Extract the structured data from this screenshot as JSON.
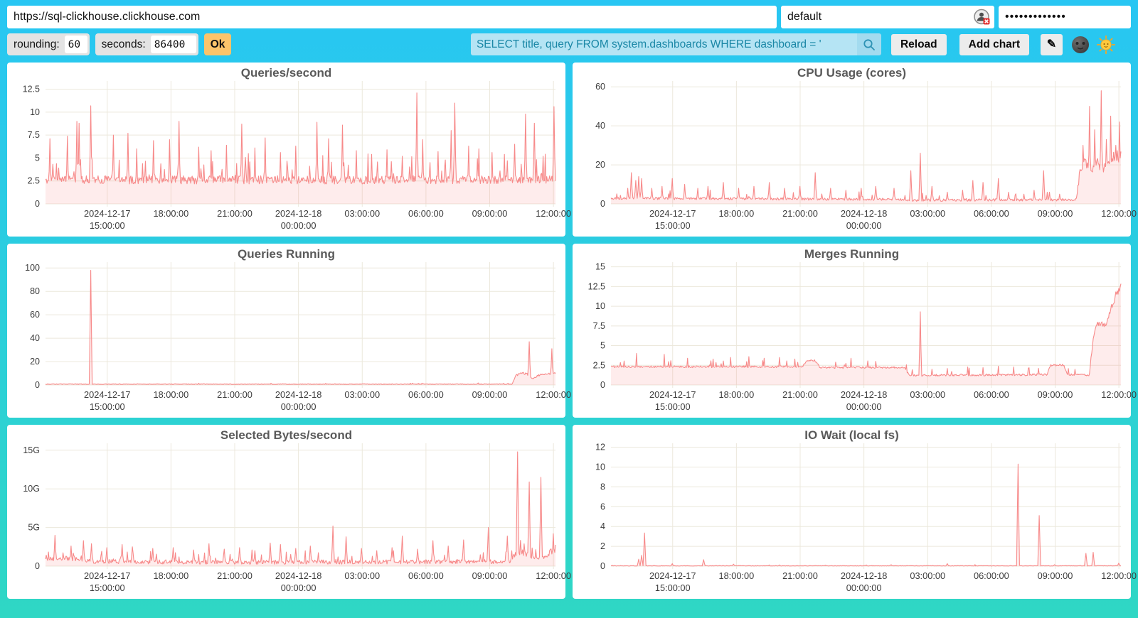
{
  "header": {
    "url": "https://sql-clickhouse.clickhouse.com",
    "username": "default",
    "password_mask": "•••••••••••••"
  },
  "toolbar": {
    "rounding_label": "rounding:",
    "rounding_value": "60",
    "seconds_label": "seconds:",
    "seconds_value": "86400",
    "ok_label": "Ok",
    "query_value": "SELECT title, query FROM system.dashboards WHERE dashboard = '",
    "reload_label": "Reload",
    "add_chart_label": "Add chart",
    "edit_glyph": "✎",
    "icons": {
      "search": "magnifier-icon",
      "edit": "pencil-icon",
      "dark_theme": "new-moon-face-icon",
      "light_theme": "sun-with-face-icon",
      "password_manager": "user-circle-error-icon"
    }
  },
  "colors": {
    "line": "#F78A8A",
    "fill": "rgba(248,136,136,0.16)",
    "grid": "#ECE8DC",
    "tick_text": "#3c3c3c",
    "ok_accent": "#FCC46A",
    "query_bg": "#B5E4F4",
    "query_text": "#1A87A6",
    "background_top": "#28C6F3",
    "background_bottom": "#2FD7C4"
  },
  "axis": {
    "x_ticks": [
      {
        "f": 0.121,
        "line1": "2024-12-17",
        "line2": "15:00:00"
      },
      {
        "f": 0.246,
        "line1": "18:00:00"
      },
      {
        "f": 0.371,
        "line1": "21:00:00"
      },
      {
        "f": 0.496,
        "line1": "2024-12-18",
        "line2": "00:00:00"
      },
      {
        "f": 0.621,
        "line1": "03:00:00"
      },
      {
        "f": 0.746,
        "line1": "06:00:00"
      },
      {
        "f": 0.871,
        "line1": "09:00:00"
      },
      {
        "f": 0.996,
        "line1": "12:00:00"
      }
    ]
  },
  "chart_data": [
    {
      "type": "line",
      "title": "Queries/second",
      "ymax": 13.4,
      "y_ticks": [
        {
          "v": 0,
          "label": "0"
        },
        {
          "v": 2.5,
          "label": "2.5"
        },
        {
          "v": 5,
          "label": "5"
        },
        {
          "v": 7.5,
          "label": "7.5"
        },
        {
          "v": 10,
          "label": "10"
        },
        {
          "v": 12.5,
          "label": "12.5"
        }
      ],
      "baseline": [
        [
          0,
          2.55
        ],
        [
          1,
          2.55
        ]
      ],
      "spikes": [
        [
          0.008,
          7.1
        ],
        [
          0.043,
          7.4
        ],
        [
          0.061,
          9.0
        ],
        [
          0.066,
          8.8
        ],
        [
          0.089,
          10.7
        ],
        [
          0.133,
          7.5
        ],
        [
          0.161,
          7.7
        ],
        [
          0.179,
          6.0
        ],
        [
          0.212,
          6.9
        ],
        [
          0.243,
          7.0
        ],
        [
          0.262,
          9.0
        ],
        [
          0.3,
          6.2
        ],
        [
          0.325,
          5.8
        ],
        [
          0.355,
          6.4
        ],
        [
          0.385,
          8.7
        ],
        [
          0.41,
          6.1
        ],
        [
          0.43,
          7.2
        ],
        [
          0.46,
          5.6
        ],
        [
          0.49,
          6.3
        ],
        [
          0.532,
          8.9
        ],
        [
          0.555,
          7.1
        ],
        [
          0.582,
          8.6
        ],
        [
          0.61,
          5.8
        ],
        [
          0.64,
          5.4
        ],
        [
          0.67,
          5.9
        ],
        [
          0.7,
          5.2
        ],
        [
          0.728,
          12.1
        ],
        [
          0.74,
          7.0
        ],
        [
          0.77,
          5.7
        ],
        [
          0.795,
          8.0
        ],
        [
          0.803,
          11.0
        ],
        [
          0.83,
          6.3
        ],
        [
          0.85,
          6.0
        ],
        [
          0.875,
          5.6
        ],
        [
          0.9,
          5.4
        ],
        [
          0.92,
          6.5
        ],
        [
          0.942,
          9.8
        ],
        [
          0.958,
          8.8
        ],
        [
          0.975,
          5.2
        ],
        [
          0.997,
          10.6
        ]
      ],
      "noise": {
        "min": 0.45,
        "rel": 0.1,
        "spike_prob": 0.1,
        "spike_amp": 2.6,
        "seed": 11
      }
    },
    {
      "type": "line",
      "title": "CPU Usage (cores)",
      "ymax": 63,
      "y_ticks": [
        {
          "v": 0,
          "label": "0"
        },
        {
          "v": 20,
          "label": "20"
        },
        {
          "v": 40,
          "label": "40"
        },
        {
          "v": 60,
          "label": "60"
        }
      ],
      "baseline": [
        [
          0,
          2.8
        ],
        [
          0.55,
          2.2
        ],
        [
          0.6,
          1.8
        ],
        [
          0.85,
          2.0
        ],
        [
          0.912,
          2.0
        ],
        [
          0.92,
          16
        ],
        [
          0.93,
          20
        ],
        [
          0.945,
          19
        ],
        [
          0.955,
          21
        ],
        [
          0.97,
          18
        ],
        [
          0.985,
          22
        ],
        [
          1,
          25
        ]
      ],
      "spikes": [
        [
          0.033,
          8
        ],
        [
          0.04,
          16
        ],
        [
          0.048,
          12
        ],
        [
          0.055,
          14
        ],
        [
          0.06,
          13
        ],
        [
          0.08,
          8
        ],
        [
          0.1,
          9
        ],
        [
          0.12,
          13
        ],
        [
          0.145,
          10
        ],
        [
          0.17,
          8
        ],
        [
          0.19,
          9
        ],
        [
          0.22,
          11
        ],
        [
          0.25,
          8
        ],
        [
          0.28,
          9
        ],
        [
          0.31,
          11
        ],
        [
          0.34,
          8
        ],
        [
          0.37,
          9
        ],
        [
          0.4,
          16
        ],
        [
          0.43,
          8
        ],
        [
          0.46,
          7
        ],
        [
          0.49,
          8
        ],
        [
          0.52,
          9
        ],
        [
          0.555,
          8
        ],
        [
          0.588,
          17
        ],
        [
          0.607,
          26
        ],
        [
          0.63,
          9
        ],
        [
          0.66,
          6
        ],
        [
          0.69,
          7
        ],
        [
          0.71,
          12
        ],
        [
          0.73,
          11
        ],
        [
          0.76,
          13
        ],
        [
          0.78,
          6
        ],
        [
          0.81,
          5
        ],
        [
          0.83,
          7
        ],
        [
          0.849,
          17
        ],
        [
          0.86,
          6
        ],
        [
          0.88,
          5
        ],
        [
          0.925,
          30
        ],
        [
          0.938,
          50
        ],
        [
          0.948,
          38
        ],
        [
          0.961,
          58
        ],
        [
          0.972,
          33
        ],
        [
          0.98,
          45
        ],
        [
          0.99,
          30
        ],
        [
          0.997,
          42
        ]
      ],
      "noise": {
        "min": 0.6,
        "rel": 0.18,
        "spike_prob": 0.05,
        "spike_amp": 4.5,
        "seed": 22
      }
    },
    {
      "type": "line",
      "title": "Queries Running",
      "ymax": 105,
      "y_ticks": [
        {
          "v": 0,
          "label": "0"
        },
        {
          "v": 20,
          "label": "20"
        },
        {
          "v": 40,
          "label": "40"
        },
        {
          "v": 60,
          "label": "60"
        },
        {
          "v": 80,
          "label": "80"
        },
        {
          "v": 100,
          "label": "100"
        }
      ],
      "baseline": [
        [
          0,
          0.7
        ],
        [
          0.915,
          0.7
        ],
        [
          0.922,
          8
        ],
        [
          0.935,
          10
        ],
        [
          0.945,
          9
        ],
        [
          0.955,
          5
        ],
        [
          0.965,
          8
        ],
        [
          0.98,
          9
        ],
        [
          1,
          10
        ]
      ],
      "spikes": [
        [
          0.089,
          98
        ],
        [
          0.3,
          1.5
        ],
        [
          0.55,
          1.4
        ],
        [
          0.72,
          1.6
        ],
        [
          0.948,
          37
        ],
        [
          0.993,
          31
        ]
      ],
      "noise": {
        "min": 0.28,
        "rel": 0.1,
        "spike_prob": 0.02,
        "spike_amp": 0.9,
        "seed": 33
      }
    },
    {
      "type": "line",
      "title": "Merges Running",
      "ymax": 15.6,
      "y_ticks": [
        {
          "v": 0,
          "label": "0"
        },
        {
          "v": 2.5,
          "label": "2.5"
        },
        {
          "v": 5,
          "label": "5"
        },
        {
          "v": 7.5,
          "label": "7.5"
        },
        {
          "v": 10,
          "label": "10"
        },
        {
          "v": 12.5,
          "label": "12.5"
        },
        {
          "v": 15,
          "label": "15"
        }
      ],
      "baseline": [
        [
          0,
          2.3
        ],
        [
          0.375,
          2.3
        ],
        [
          0.385,
          3.1
        ],
        [
          0.4,
          3.1
        ],
        [
          0.41,
          2.2
        ],
        [
          0.575,
          2.2
        ],
        [
          0.585,
          1.2
        ],
        [
          0.855,
          1.3
        ],
        [
          0.862,
          2.5
        ],
        [
          0.888,
          2.5
        ],
        [
          0.895,
          1.3
        ],
        [
          0.938,
          1.25
        ],
        [
          0.945,
          5.6
        ],
        [
          0.952,
          7.6
        ],
        [
          0.97,
          7.7
        ],
        [
          0.978,
          9.0
        ],
        [
          0.985,
          10.5
        ],
        [
          0.993,
          11.8
        ],
        [
          1,
          12.6
        ]
      ],
      "spikes": [
        [
          0.05,
          4.0
        ],
        [
          0.105,
          3.9
        ],
        [
          0.15,
          3.4
        ],
        [
          0.2,
          3.3
        ],
        [
          0.235,
          3.5
        ],
        [
          0.27,
          3.6
        ],
        [
          0.3,
          3.4
        ],
        [
          0.33,
          3.5
        ],
        [
          0.36,
          3.3
        ],
        [
          0.44,
          2.9
        ],
        [
          0.47,
          3.4
        ],
        [
          0.52,
          3.0
        ],
        [
          0.607,
          9.3
        ],
        [
          0.63,
          2.0
        ],
        [
          0.66,
          2.1
        ],
        [
          0.7,
          2.3
        ],
        [
          0.73,
          2.2
        ],
        [
          0.76,
          2.4
        ],
        [
          0.79,
          2.3
        ],
        [
          0.82,
          2.2
        ],
        [
          0.91,
          2.0
        ]
      ],
      "noise": {
        "min": 0.12,
        "rel": 0.05,
        "spike_prob": 0.06,
        "spike_amp": 0.9,
        "seed": 44
      }
    },
    {
      "type": "line",
      "title": "Selected Bytes/second",
      "ymax": 15.9,
      "y_ticks": [
        {
          "v": 0,
          "label": "0"
        },
        {
          "v": 5,
          "label": "5G"
        },
        {
          "v": 10,
          "label": "10G"
        },
        {
          "v": 15,
          "label": "15G"
        }
      ],
      "baseline": [
        [
          0,
          0.9
        ],
        [
          0.04,
          1.0
        ],
        [
          0.09,
          0.55
        ],
        [
          0.4,
          0.45
        ],
        [
          0.6,
          0.5
        ],
        [
          0.91,
          0.55
        ],
        [
          0.92,
          1.5
        ],
        [
          0.935,
          1.8
        ],
        [
          0.95,
          1.3
        ],
        [
          0.965,
          1.1
        ],
        [
          0.98,
          1.2
        ],
        [
          1,
          2.2
        ]
      ],
      "spikes": [
        [
          0.018,
          4.0
        ],
        [
          0.05,
          2.6
        ],
        [
          0.075,
          3.3
        ],
        [
          0.09,
          2.9
        ],
        [
          0.12,
          2.4
        ],
        [
          0.15,
          2.8
        ],
        [
          0.17,
          2.5
        ],
        [
          0.21,
          2.3
        ],
        [
          0.25,
          2.4
        ],
        [
          0.29,
          2.1
        ],
        [
          0.32,
          2.9
        ],
        [
          0.35,
          2.2
        ],
        [
          0.38,
          2.4
        ],
        [
          0.41,
          2.0
        ],
        [
          0.44,
          3.0
        ],
        [
          0.46,
          2.8
        ],
        [
          0.49,
          2.3
        ],
        [
          0.52,
          2.6
        ],
        [
          0.563,
          5.2
        ],
        [
          0.59,
          3.8
        ],
        [
          0.62,
          2.3
        ],
        [
          0.65,
          2.0
        ],
        [
          0.68,
          2.4
        ],
        [
          0.7,
          3.9
        ],
        [
          0.73,
          2.2
        ],
        [
          0.76,
          3.3
        ],
        [
          0.79,
          2.6
        ],
        [
          0.82,
          3.4
        ],
        [
          0.868,
          5.0
        ],
        [
          0.906,
          3.9
        ],
        [
          0.925,
          14.8
        ],
        [
          0.949,
          10.9
        ],
        [
          0.971,
          11.5
        ],
        [
          0.995,
          4.2
        ]
      ],
      "noise": {
        "min": 0.28,
        "rel": 0.25,
        "spike_prob": 0.08,
        "spike_amp": 1.5,
        "seed": 55
      }
    },
    {
      "type": "line",
      "title": "IO Wait (local fs)",
      "ymax": 12.4,
      "y_ticks": [
        {
          "v": 0,
          "label": "0"
        },
        {
          "v": 2,
          "label": "2"
        },
        {
          "v": 4,
          "label": "4"
        },
        {
          "v": 6,
          "label": "6"
        },
        {
          "v": 8,
          "label": "8"
        },
        {
          "v": 10,
          "label": "10"
        },
        {
          "v": 12,
          "label": "12"
        }
      ],
      "baseline": [
        [
          0,
          0.03
        ],
        [
          1,
          0.03
        ]
      ],
      "spikes": [
        [
          0.055,
          0.7
        ],
        [
          0.06,
          1.1
        ],
        [
          0.066,
          3.35
        ],
        [
          0.12,
          0.25
        ],
        [
          0.182,
          0.65
        ],
        [
          0.24,
          0.2
        ],
        [
          0.33,
          0.12
        ],
        [
          0.42,
          0.1
        ],
        [
          0.5,
          0.12
        ],
        [
          0.55,
          0.15
        ],
        [
          0.66,
          0.25
        ],
        [
          0.798,
          10.3
        ],
        [
          0.84,
          5.1
        ],
        [
          0.87,
          0.15
        ],
        [
          0.932,
          1.3
        ],
        [
          0.945,
          1.4
        ],
        [
          0.995,
          0.3
        ]
      ],
      "noise": {
        "min": 0.025,
        "rel": 0.1,
        "spike_prob": 0.006,
        "spike_amp": 0.12,
        "seed": 66
      }
    }
  ]
}
